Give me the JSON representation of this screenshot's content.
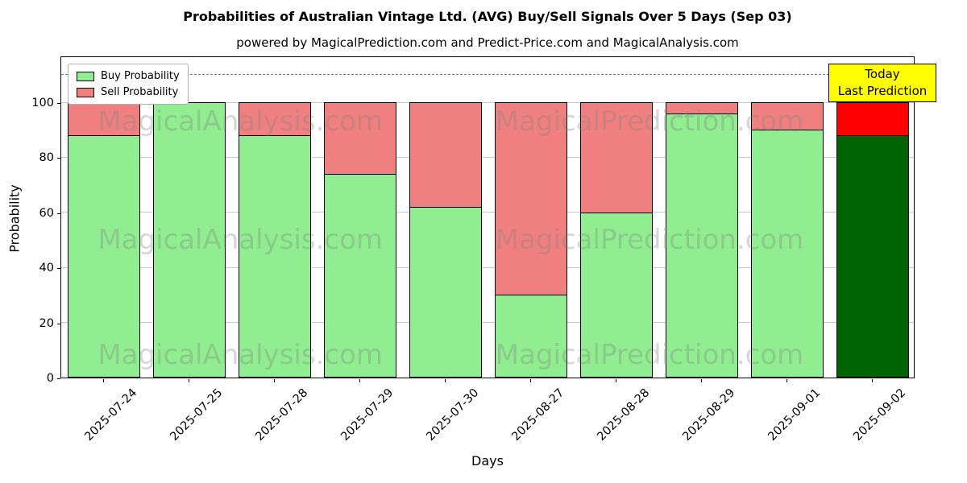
{
  "chart": {
    "title": "Probabilities of Australian Vintage Ltd. (AVG) Buy/Sell Signals Over 5 Days (Sep 03)",
    "subtitle": "powered by MagicalPrediction.com and Predict-Price.com and MagicalAnalysis.com",
    "xlabel": "Days",
    "ylabel": "Probability",
    "legend": {
      "buy": "Buy Probability",
      "sell": "Sell Probability"
    },
    "annotation": {
      "line1": "Today",
      "line2": "Last Prediction"
    }
  },
  "chart_data": {
    "type": "bar",
    "stacked": true,
    "title": "Probabilities of Australian Vintage Ltd. (AVG) Buy/Sell Signals Over 5 Days (Sep 03)",
    "xlabel": "Days",
    "ylabel": "Probability",
    "categories": [
      "2025-07-24",
      "2025-07-25",
      "2025-07-28",
      "2025-07-29",
      "2025-07-30",
      "2025-08-27",
      "2025-08-28",
      "2025-08-29",
      "2025-09-01",
      "2025-09-02"
    ],
    "series": [
      {
        "name": "Buy Probability",
        "color": "#90ee90",
        "last_bar_color": "#006400",
        "values": [
          88,
          100,
          88,
          74,
          62,
          30,
          60,
          96,
          90,
          88
        ]
      },
      {
        "name": "Sell Probability",
        "color": "#f08080",
        "last_bar_color": "#ff0000",
        "values": [
          12,
          0,
          12,
          26,
          38,
          70,
          40,
          4,
          10,
          12
        ]
      }
    ],
    "yticks": [
      0,
      20,
      40,
      60,
      80,
      100
    ],
    "ylim": [
      0,
      117
    ],
    "dashed_line_y": 110,
    "bar_width_fraction": 0.85,
    "grid": "horizontal",
    "legend_position": "upper-left",
    "watermarks": {
      "left_text": "MagicalAnalysis.com",
      "right_text": "MagicalPrediction.com",
      "rows_y_pct": [
        20,
        57,
        93
      ],
      "left_x_pct": 21,
      "right_x_pct": 69
    }
  }
}
